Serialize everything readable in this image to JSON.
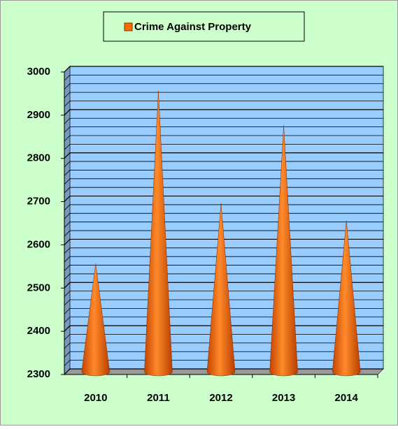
{
  "chart_data": {
    "type": "cone",
    "categories": [
      "2010",
      "2011",
      "2012",
      "2013",
      "2014"
    ],
    "series": [
      {
        "name": "Crime Against Property",
        "color": "#ff6a00",
        "values": [
          2550,
          2950,
          2690,
          2870,
          2650
        ]
      }
    ],
    "ylim": [
      2300,
      3000
    ],
    "yticks": [
      2300,
      2400,
      2500,
      2600,
      2700,
      2800,
      2900,
      3000
    ],
    "yminorticks": [
      2320,
      2340,
      2360,
      2380,
      2420,
      2440,
      2460,
      2480,
      2520,
      2540,
      2560,
      2580,
      2620,
      2640,
      2660,
      2680,
      2720,
      2740,
      2760,
      2780,
      2820,
      2840,
      2860,
      2880,
      2920,
      2940,
      2960,
      2980
    ],
    "grid": true,
    "legend": "top"
  }
}
